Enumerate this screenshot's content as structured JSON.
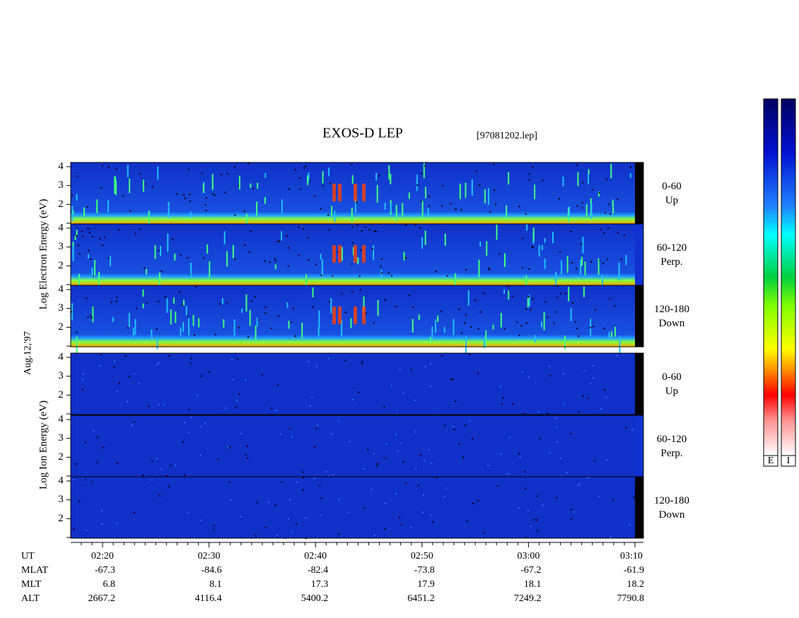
{
  "title": "EXOS-D LEP",
  "file": "[97081202.lep]",
  "date": "Aug.12,'97",
  "electron_axis_label": "Log Electron Energy (eV)",
  "ion_axis_label": "Log Ion Energy (eV)",
  "yticks": [
    2,
    3,
    4
  ],
  "panels": [
    {
      "angle": "0-60",
      "direction": "Up"
    },
    {
      "angle": "60-120",
      "direction": "Perp."
    },
    {
      "angle": "120-180",
      "direction": "Down"
    },
    {
      "angle": "0-60",
      "direction": "Up"
    },
    {
      "angle": "60-120",
      "direction": "Perp."
    },
    {
      "angle": "120-180",
      "direction": "Down"
    }
  ],
  "time_table": {
    "row_labels": [
      "UT",
      "MLAT",
      "MLT",
      "ALT"
    ],
    "columns": [
      {
        "ut": "02:20",
        "mlat": -67.3,
        "mlt": 6.8,
        "alt": 2667.2
      },
      {
        "ut": "02:30",
        "mlat": -84.6,
        "mlt": 8.1,
        "alt": 4116.4
      },
      {
        "ut": "02:40",
        "mlat": -82.4,
        "mlt": 17.3,
        "alt": 5400.2
      },
      {
        "ut": "02:50",
        "mlat": -73.8,
        "mlt": 17.9,
        "alt": 6451.2
      },
      {
        "ut": "03:00",
        "mlat": -67.2,
        "mlt": 18.1,
        "alt": 7249.2
      },
      {
        "ut": "03:10",
        "mlat": -61.9,
        "mlt": 18.2,
        "alt": 7790.8
      }
    ]
  },
  "colorbar_labels": [
    "E",
    "I"
  ]
}
